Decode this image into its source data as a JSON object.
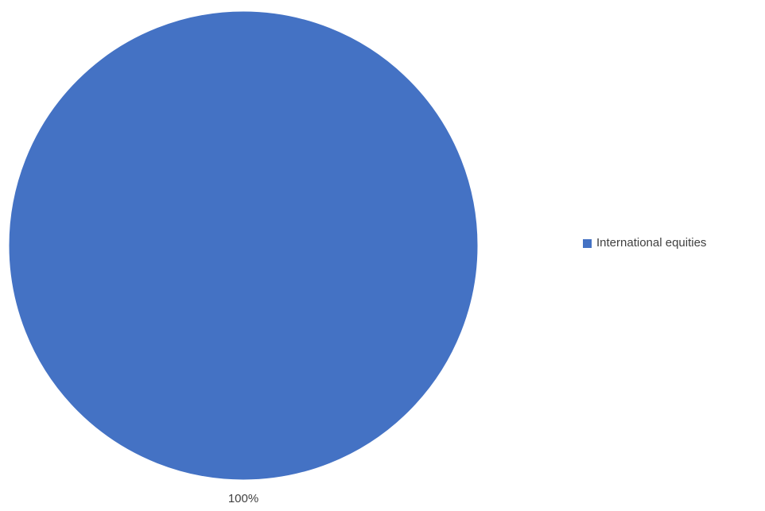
{
  "colors": {
    "background": "#ffffff",
    "slice": "#4472c4",
    "label_text": "#404040"
  },
  "chart_data": {
    "type": "pie",
    "title": "",
    "legend_position": "right",
    "slices": [
      {
        "name": "International equities",
        "value": 100,
        "percent_label": "100%",
        "color": "#4472c4"
      }
    ]
  }
}
